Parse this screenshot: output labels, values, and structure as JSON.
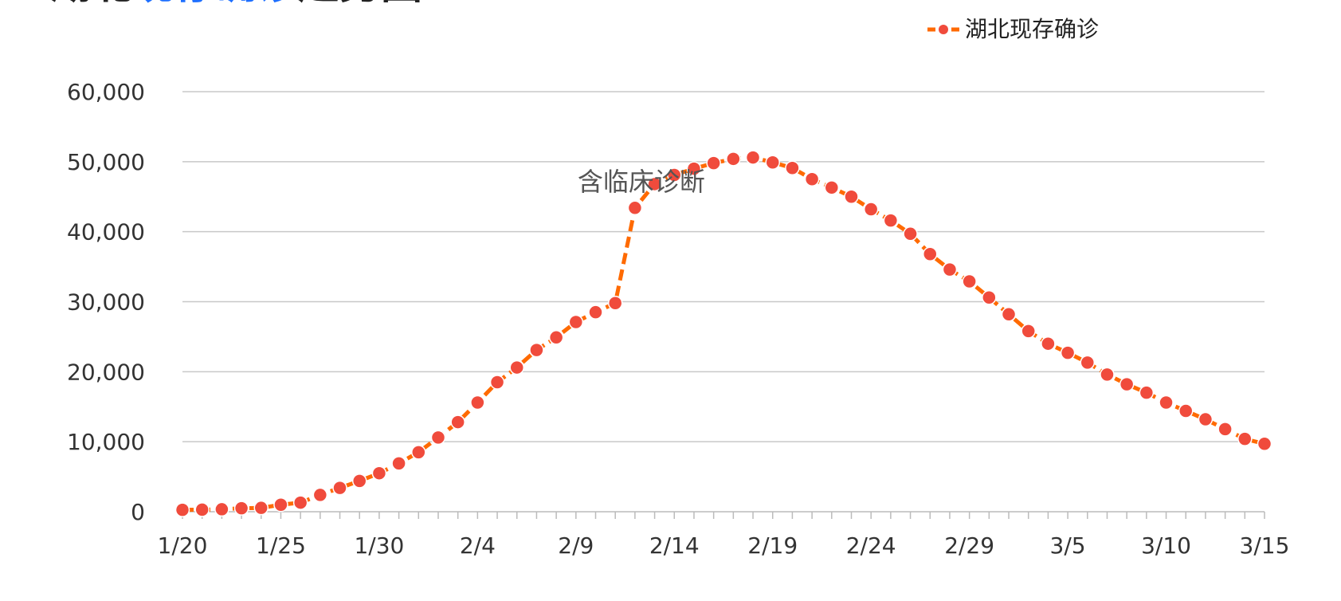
{
  "title_parts": [
    {
      "text": "湖北",
      "color": "#222222"
    },
    {
      "text": "现存确诊",
      "color": "#1e6fff"
    },
    {
      "text": "趋势图",
      "color": "#222222"
    }
  ],
  "colors": {
    "line": "#ff6a00",
    "marker": "#f04b3c",
    "grid": "#c8c8c8",
    "axis": "#bbbbbb"
  },
  "chart_data": {
    "type": "line",
    "xlabel": "",
    "ylabel": "",
    "ylim": [
      0,
      60000
    ],
    "yticks": [
      0,
      10000,
      20000,
      30000,
      40000,
      50000,
      60000
    ],
    "ytick_labels": [
      "0",
      "10,000",
      "20,000",
      "30,000",
      "40,000",
      "50,000",
      "60,000"
    ],
    "grid": "horizontal",
    "legend": {
      "position": "top-right",
      "entries": [
        "湖北现存确诊"
      ]
    },
    "xtick_labels": [
      "1/20",
      "1/25",
      "1/30",
      "2/4",
      "2/9",
      "2/14",
      "2/19",
      "2/24",
      "2/29",
      "3/5",
      "3/10",
      "3/15"
    ],
    "xtick_indices": [
      0,
      5,
      10,
      15,
      20,
      25,
      30,
      35,
      40,
      45,
      50,
      55
    ],
    "x": [
      "1/20",
      "1/21",
      "1/22",
      "1/23",
      "1/24",
      "1/25",
      "1/26",
      "1/27",
      "1/28",
      "1/29",
      "1/30",
      "1/31",
      "2/1",
      "2/2",
      "2/3",
      "2/4",
      "2/5",
      "2/6",
      "2/7",
      "2/8",
      "2/9",
      "2/10",
      "2/11",
      "2/12",
      "2/13",
      "2/14",
      "2/15",
      "2/16",
      "2/17",
      "2/18",
      "2/19",
      "2/20",
      "2/21",
      "2/22",
      "2/23",
      "2/24",
      "2/25",
      "2/26",
      "2/27",
      "2/28",
      "2/29",
      "3/1",
      "3/2",
      "3/3",
      "3/4",
      "3/5",
      "3/6",
      "3/7",
      "3/8",
      "3/9",
      "3/10",
      "3/11",
      "3/12",
      "3/13",
      "3/14",
      "3/15"
    ],
    "series": [
      {
        "name": "湖北现存确诊",
        "values": [
          270,
          300,
          350,
          500,
          550,
          1000,
          1300,
          2400,
          3400,
          4400,
          5500,
          6900,
          8500,
          10600,
          12800,
          15600,
          18500,
          20600,
          23100,
          24900,
          27100,
          28500,
          29800,
          43400,
          46800,
          48100,
          49000,
          49800,
          50400,
          50600,
          49900,
          49100,
          47500,
          46300,
          45000,
          43200,
          41600,
          39700,
          36800,
          34600,
          32900,
          30600,
          28200,
          25800,
          24000,
          22700,
          21300,
          19600,
          18200,
          17000,
          15600,
          14400,
          13200,
          11800,
          10400,
          9700
        ]
      }
    ],
    "annotations": [
      {
        "text": "含临床诊断",
        "x": "2/12"
      }
    ]
  }
}
